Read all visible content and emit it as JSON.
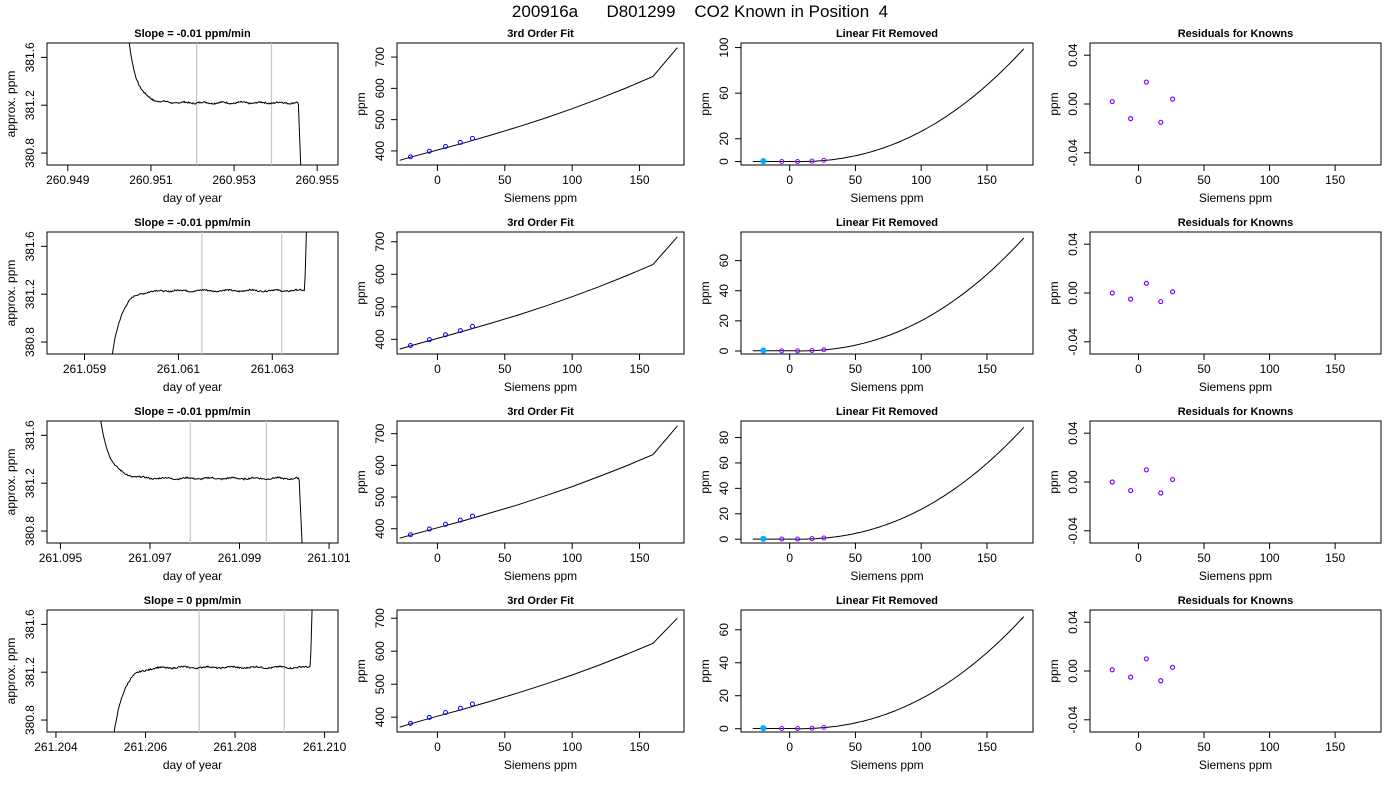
{
  "page_title": "200916a      D801299    CO2 Known in Position  4",
  "colors": {
    "trace": "#000000",
    "window_line": "#c8c8c8",
    "residual_point": "#8800ff",
    "known_point_outline": "#0000ff",
    "known_point_fill": "#00b0ff",
    "reference_point": "#c0c0ff"
  },
  "row_labels": {
    "ts_ylabel": "approx. ppm",
    "ts_xlabel": "day of year",
    "fit_title": "3rd Order Fit",
    "fit_ylabel": "ppm",
    "fit_xlabel": "Siemens ppm",
    "lin_title": "Linear Fit Removed",
    "lin_ylabel": "ppm",
    "lin_xlabel": "Siemens ppm",
    "res_title": "Residuals for Knowns",
    "res_ylabel": "ppm",
    "res_xlabel": "Siemens ppm"
  },
  "chart_data": [
    {
      "type": "line",
      "panel": "timeseries",
      "row": 1,
      "title": "Slope =  -0.01  ppm/min",
      "xlabel": "day of year",
      "ylabel": "approx. ppm",
      "xlim": [
        260.9485,
        260.9555
      ],
      "ylim": [
        380.7,
        381.72
      ],
      "xticks": [
        "260.949",
        "260.951",
        "260.953",
        "260.955"
      ],
      "xtick_values": [
        260.949,
        260.951,
        260.953,
        260.955
      ],
      "yticks": [
        "380.8",
        "381.2",
        "381.6"
      ],
      "ytick_values": [
        380.8,
        381.2,
        381.6
      ],
      "window_lines_x": [
        260.9521,
        260.9539
      ],
      "shape": "down",
      "trace": {
        "start": 260.9503,
        "end": 260.9547,
        "plateau": 381.22
      }
    },
    {
      "type": "line",
      "panel": "fit",
      "row": 1,
      "title": "3rd Order Fit",
      "xlabel": "Siemens ppm",
      "ylabel": "ppm",
      "xlim": [
        -30,
        183
      ],
      "ylim": [
        355,
        745
      ],
      "xticks": [
        "0",
        "50",
        "100",
        "150"
      ],
      "xtick_values": [
        0,
        50,
        100,
        150
      ],
      "yticks": [
        "400",
        "500",
        "600",
        "700"
      ],
      "ytick_values": [
        400,
        500,
        600,
        700
      ],
      "curve": {
        "x": [
          -28,
          -20,
          0,
          20,
          40,
          60,
          80,
          100,
          120,
          140,
          160,
          178
        ],
        "y": [
          370,
          380,
          403,
          426,
          451,
          477,
          505,
          535,
          567,
          601,
          638,
          730
        ]
      },
      "points": {
        "x": [
          -20,
          -6,
          6,
          17,
          26
        ],
        "y": [
          381,
          399,
          414,
          427,
          440
        ]
      }
    },
    {
      "type": "line",
      "panel": "linear_removed",
      "row": 1,
      "title": "Linear Fit Removed",
      "xlabel": "Siemens ppm",
      "ylabel": "ppm",
      "xlim": [
        -37,
        185
      ],
      "ylim": [
        -3,
        104
      ],
      "xticks": [
        "0",
        "50",
        "100",
        "150"
      ],
      "xtick_values": [
        0,
        50,
        100,
        150
      ],
      "yticks": [
        "0",
        "20",
        "60",
        "100"
      ],
      "ytick_values": [
        0,
        20,
        60,
        100
      ],
      "curve_peak": 99,
      "points": {
        "x": [
          -20,
          -6,
          6,
          17,
          26
        ],
        "y": [
          0.4,
          0.1,
          0.1,
          0.4,
          1.1
        ]
      }
    },
    {
      "type": "scatter",
      "panel": "residuals",
      "row": 1,
      "title": "Residuals for Knowns",
      "xlabel": "Siemens ppm",
      "ylabel": "ppm",
      "xlim": [
        -37,
        185
      ],
      "ylim": [
        -0.05,
        0.05
      ],
      "xticks": [
        "0",
        "50",
        "100",
        "150"
      ],
      "xtick_values": [
        0,
        50,
        100,
        150
      ],
      "yticks": [
        "-0.04",
        "0.00",
        "0.04"
      ],
      "ytick_values": [
        -0.04,
        0.0,
        0.04
      ],
      "points": {
        "x": [
          -20,
          -6,
          6,
          17,
          26
        ],
        "y": [
          0.002,
          -0.012,
          0.018,
          -0.015,
          0.004
        ]
      }
    },
    {
      "type": "line",
      "panel": "timeseries",
      "row": 2,
      "title": "Slope =  -0.01  ppm/min",
      "xlabel": "day of year",
      "ylabel": "approx. ppm",
      "xlim": [
        261.0582,
        261.0644
      ],
      "ylim": [
        380.7,
        381.72
      ],
      "xticks": [
        "261.059",
        "261.061",
        "261.063"
      ],
      "xtick_values": [
        261.059,
        261.061,
        261.063
      ],
      "yticks": [
        "380.8",
        "381.2",
        "381.6"
      ],
      "ytick_values": [
        380.8,
        381.2,
        381.6
      ],
      "window_lines_x": [
        261.0615,
        261.0632
      ],
      "shape": "up",
      "trace": {
        "start": 261.0594,
        "end": 261.0638,
        "plateau": 381.23
      }
    },
    {
      "type": "line",
      "panel": "fit",
      "row": 2,
      "title": "3rd Order Fit",
      "xlabel": "Siemens ppm",
      "ylabel": "ppm",
      "xlim": [
        -30,
        183
      ],
      "ylim": [
        355,
        730
      ],
      "xticks": [
        "0",
        "50",
        "100",
        "150"
      ],
      "xtick_values": [
        0,
        50,
        100,
        150
      ],
      "yticks": [
        "400",
        "500",
        "600",
        "700"
      ],
      "ytick_values": [
        400,
        500,
        600,
        700
      ],
      "curve": {
        "x": [
          -28,
          -20,
          0,
          20,
          40,
          60,
          80,
          100,
          120,
          140,
          160,
          178
        ],
        "y": [
          370,
          380,
          403,
          426,
          450,
          475,
          502,
          531,
          562,
          595,
          630,
          715
        ]
      },
      "points": {
        "x": [
          -20,
          -6,
          6,
          17,
          26
        ],
        "y": [
          381,
          399,
          414,
          427,
          440
        ]
      }
    },
    {
      "type": "line",
      "panel": "linear_removed",
      "row": 2,
      "title": "Linear Fit Removed",
      "xlabel": "Siemens ppm",
      "ylabel": "ppm",
      "xlim": [
        -37,
        185
      ],
      "ylim": [
        -2,
        79
      ],
      "xticks": [
        "0",
        "50",
        "100",
        "150"
      ],
      "xtick_values": [
        0,
        50,
        100,
        150
      ],
      "yticks": [
        "0",
        "20",
        "40",
        "60"
      ],
      "ytick_values": [
        0,
        20,
        40,
        60
      ],
      "curve_peak": 75,
      "points": {
        "x": [
          -20,
          -6,
          6,
          17,
          26
        ],
        "y": [
          0.3,
          0.1,
          0.1,
          0.3,
          0.8
        ]
      }
    },
    {
      "type": "scatter",
      "panel": "residuals",
      "row": 2,
      "title": "Residuals for Knowns",
      "xlabel": "Siemens ppm",
      "ylabel": "ppm",
      "xlim": [
        -37,
        185
      ],
      "ylim": [
        -0.05,
        0.05
      ],
      "xticks": [
        "0",
        "50",
        "100",
        "150"
      ],
      "xtick_values": [
        0,
        50,
        100,
        150
      ],
      "yticks": [
        "-0.04",
        "0.00",
        "0.04"
      ],
      "ytick_values": [
        -0.04,
        0.0,
        0.04
      ],
      "points": {
        "x": [
          -20,
          -6,
          6,
          17,
          26
        ],
        "y": [
          0.0,
          -0.005,
          0.008,
          -0.007,
          0.001
        ]
      }
    },
    {
      "type": "line",
      "panel": "timeseries",
      "row": 3,
      "title": "Slope =  -0.01  ppm/min",
      "xlabel": "day of year",
      "ylabel": "approx. ppm",
      "xlim": [
        261.0947,
        261.1012
      ],
      "ylim": [
        380.7,
        381.72
      ],
      "xticks": [
        "261.095",
        "261.097",
        "261.099",
        "261.101"
      ],
      "xtick_values": [
        261.095,
        261.097,
        261.099,
        261.101
      ],
      "yticks": [
        "380.8",
        "381.2",
        "381.6"
      ],
      "ytick_values": [
        380.8,
        381.2,
        381.6
      ],
      "window_lines_x": [
        261.0979,
        261.0996
      ],
      "shape": "down",
      "trace": {
        "start": 261.0957,
        "end": 261.1005,
        "plateau": 381.24
      }
    },
    {
      "type": "line",
      "panel": "fit",
      "row": 3,
      "title": "3rd Order Fit",
      "xlabel": "Siemens ppm",
      "ylabel": "ppm",
      "xlim": [
        -30,
        183
      ],
      "ylim": [
        355,
        740
      ],
      "xticks": [
        "0",
        "50",
        "100",
        "150"
      ],
      "xtick_values": [
        0,
        50,
        100,
        150
      ],
      "yticks": [
        "400",
        "500",
        "600",
        "700"
      ],
      "ytick_values": [
        400,
        500,
        600,
        700
      ],
      "curve": {
        "x": [
          -28,
          -20,
          0,
          20,
          40,
          60,
          80,
          100,
          120,
          140,
          160,
          178
        ],
        "y": [
          370,
          380,
          403,
          426,
          451,
          476,
          504,
          533,
          565,
          598,
          634,
          724
        ]
      },
      "points": {
        "x": [
          -20,
          -6,
          6,
          17,
          26
        ],
        "y": [
          381,
          399,
          414,
          427,
          440
        ]
      }
    },
    {
      "type": "line",
      "panel": "linear_removed",
      "row": 3,
      "title": "Linear Fit Removed",
      "xlabel": "Siemens ppm",
      "ylabel": "ppm",
      "xlim": [
        -37,
        185
      ],
      "ylim": [
        -3,
        93
      ],
      "xticks": [
        "0",
        "50",
        "100",
        "150"
      ],
      "xtick_values": [
        0,
        50,
        100,
        150
      ],
      "yticks": [
        "0",
        "20",
        "40",
        "60",
        "80"
      ],
      "ytick_values": [
        0,
        20,
        40,
        60,
        80
      ],
      "curve_peak": 88,
      "points": {
        "x": [
          -20,
          -6,
          6,
          17,
          26
        ],
        "y": [
          0.3,
          0.1,
          0.1,
          0.4,
          0.9
        ]
      }
    },
    {
      "type": "scatter",
      "panel": "residuals",
      "row": 3,
      "title": "Residuals for Knowns",
      "xlabel": "Siemens ppm",
      "ylabel": "ppm",
      "xlim": [
        -37,
        185
      ],
      "ylim": [
        -0.05,
        0.05
      ],
      "xticks": [
        "0",
        "50",
        "100",
        "150"
      ],
      "xtick_values": [
        0,
        50,
        100,
        150
      ],
      "yticks": [
        "-0.04",
        "0.00",
        "0.04"
      ],
      "ytick_values": [
        -0.04,
        0.0,
        0.04
      ],
      "points": {
        "x": [
          -20,
          -6,
          6,
          17,
          26
        ],
        "y": [
          0.0,
          -0.007,
          0.01,
          -0.009,
          0.002
        ]
      }
    },
    {
      "type": "line",
      "panel": "timeseries",
      "row": 4,
      "title": "Slope =  0  ppm/min",
      "xlabel": "day of year",
      "ylabel": "approx. ppm",
      "xlim": [
        261.2038,
        261.2103
      ],
      "ylim": [
        380.7,
        381.72
      ],
      "xticks": [
        "261.204",
        "261.206",
        "261.208",
        "261.210"
      ],
      "xtick_values": [
        261.204,
        261.206,
        261.208,
        261.21
      ],
      "yticks": [
        "380.8",
        "381.2",
        "381.6"
      ],
      "ytick_values": [
        380.8,
        381.2,
        381.6
      ],
      "window_lines_x": [
        261.2072,
        261.2091
      ],
      "shape": "up",
      "trace": {
        "start": 261.2051,
        "end": 261.2098,
        "plateau": 381.24
      }
    },
    {
      "type": "line",
      "panel": "fit",
      "row": 4,
      "title": "3rd Order Fit",
      "xlabel": "Siemens ppm",
      "ylabel": "ppm",
      "xlim": [
        -30,
        183
      ],
      "ylim": [
        355,
        725
      ],
      "xticks": [
        "0",
        "50",
        "100",
        "150"
      ],
      "xtick_values": [
        0,
        50,
        100,
        150
      ],
      "yticks": [
        "400",
        "500",
        "600",
        "700"
      ],
      "ytick_values": [
        400,
        500,
        600,
        700
      ],
      "curve": {
        "x": [
          -28,
          -20,
          0,
          20,
          40,
          60,
          80,
          100,
          120,
          140,
          160,
          178
        ],
        "y": [
          370,
          380,
          403,
          425,
          449,
          474,
          500,
          528,
          558,
          590,
          624,
          700
        ]
      },
      "points": {
        "x": [
          -20,
          -6,
          6,
          17,
          26
        ],
        "y": [
          381,
          399,
          414,
          427,
          440
        ]
      }
    },
    {
      "type": "line",
      "panel": "linear_removed",
      "row": 4,
      "title": "Linear Fit Removed",
      "xlabel": "Siemens ppm",
      "ylabel": "ppm",
      "xlim": [
        -37,
        185
      ],
      "ylim": [
        -2,
        72
      ],
      "xticks": [
        "0",
        "50",
        "100",
        "150"
      ],
      "xtick_values": [
        0,
        50,
        100,
        150
      ],
      "yticks": [
        "0",
        "20",
        "40",
        "60"
      ],
      "ytick_values": [
        0,
        20,
        40,
        60
      ],
      "curve_peak": 68,
      "points": {
        "x": [
          -20,
          -6,
          6,
          17,
          26
        ],
        "y": [
          0.3,
          0.1,
          0.1,
          0.3,
          0.8
        ]
      }
    },
    {
      "type": "scatter",
      "panel": "residuals",
      "row": 4,
      "title": "Residuals for Knowns",
      "xlabel": "Siemens ppm",
      "ylabel": "ppm",
      "xlim": [
        -37,
        185
      ],
      "ylim": [
        -0.05,
        0.05
      ],
      "xticks": [
        "0",
        "50",
        "100",
        "150"
      ],
      "xtick_values": [
        0,
        50,
        100,
        150
      ],
      "yticks": [
        "-0.04",
        "0.00",
        "0.04"
      ],
      "ytick_values": [
        -0.04,
        0.0,
        0.04
      ],
      "points": {
        "x": [
          -20,
          -6,
          6,
          17,
          26
        ],
        "y": [
          0.001,
          -0.005,
          0.01,
          -0.008,
          0.003
        ]
      }
    }
  ]
}
